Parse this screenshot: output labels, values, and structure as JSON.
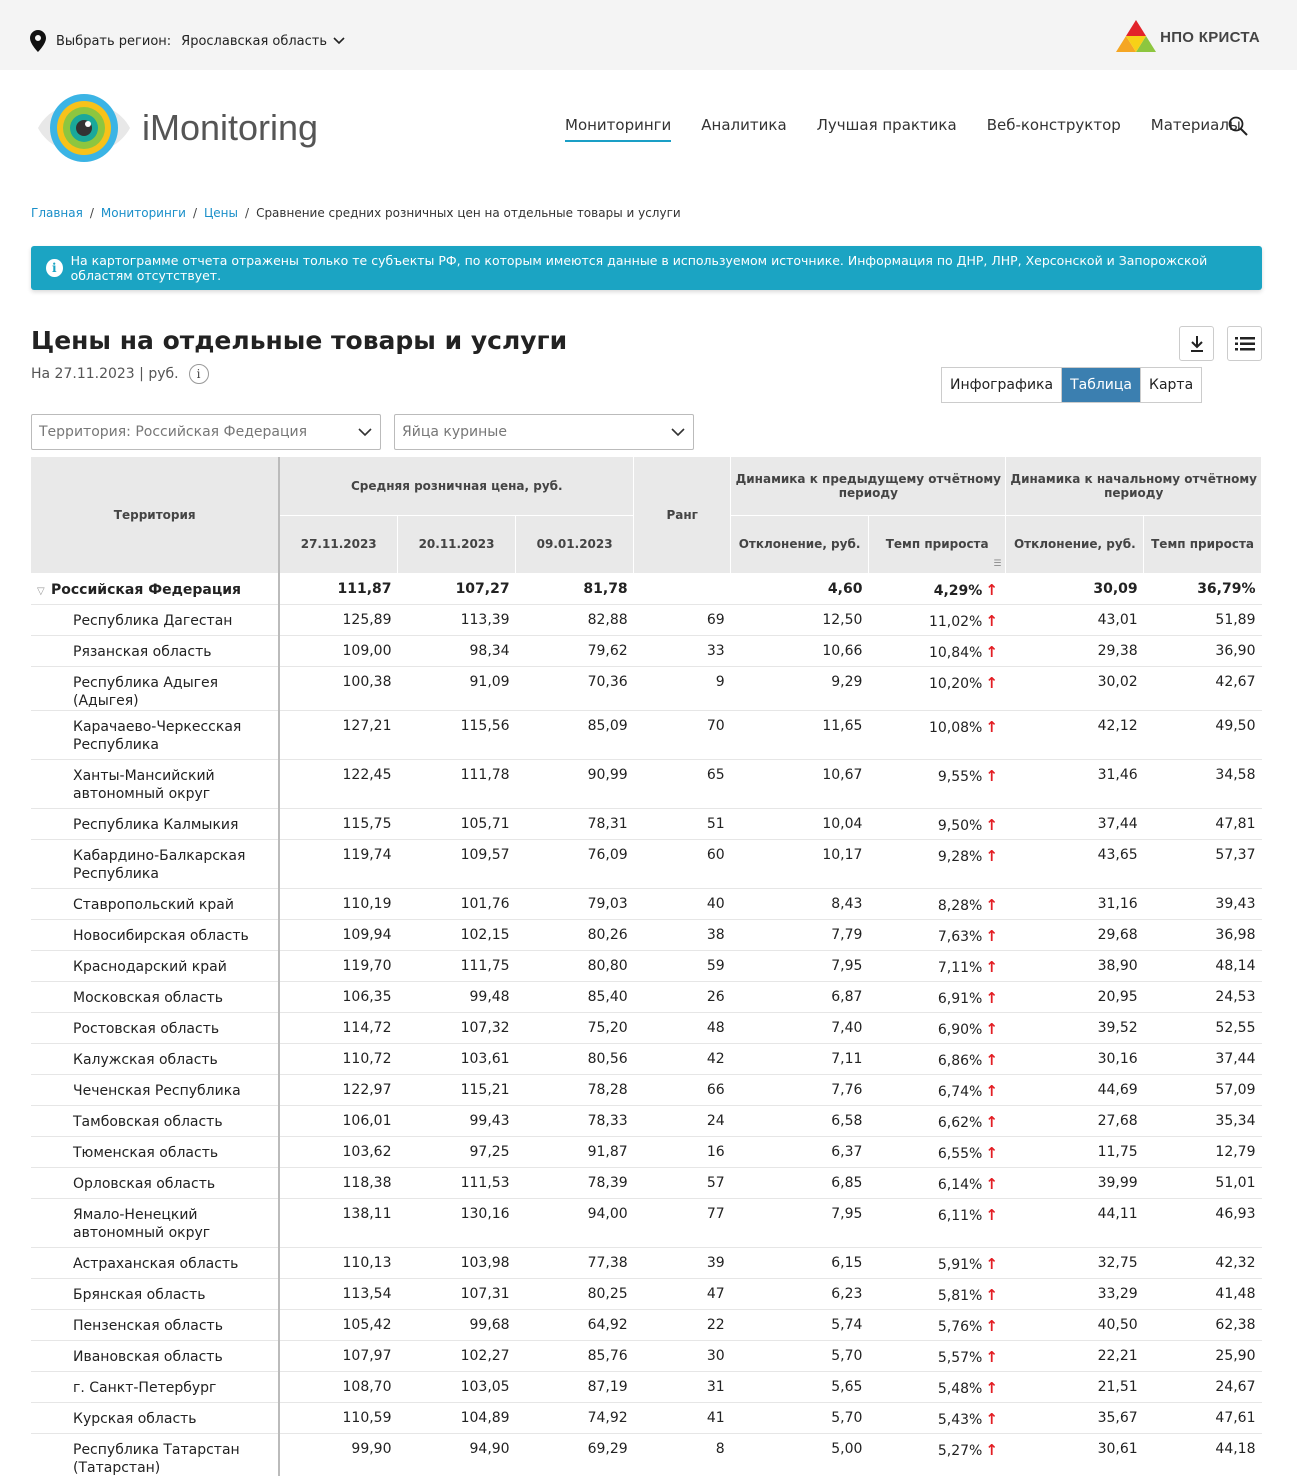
{
  "topbar": {
    "region_label": "Выбрать регион:",
    "region_value": "Ярославская область",
    "brand": "НПО КРИСТА"
  },
  "header": {
    "logo_text": "iMonitoring",
    "nav": [
      "Мониторинги",
      "Аналитика",
      "Лучшая практика",
      "Веб-конструктор",
      "Материалы"
    ]
  },
  "breadcrumbs": [
    "Главная",
    "Мониторинги",
    "Цены",
    "Сравнение средних розничных цен на отдельные товары и услуги"
  ],
  "alert": "На картограмме отчета отражены только те субъекты РФ, по которым имеются данные в используемом источнике. Информация по ДНР, ЛНР, Херсонской и Запорожской областям отсутствует.",
  "page": {
    "title": "Цены на отдельные товары и услуги",
    "subtitle": "На 27.11.2023 | руб.",
    "info_glyph": "i",
    "views": [
      "Инфографика",
      "Таблица",
      "Карта"
    ],
    "selected_view": "Таблица"
  },
  "filters": {
    "territory": "Территория: Российская  Федерация",
    "product": "Яйца куриные"
  },
  "table": {
    "h_territory": "Территория",
    "h_avg_price": "Средняя розничная цена, руб.",
    "h_rank": "Ранг",
    "h_dyn_prev": "Динамика к предыдущему отчётному периоду",
    "h_dyn_start": "Динамика к начальному отчётному периоду",
    "h_dates": [
      "27.11.2023",
      "20.11.2023",
      "09.01.2023"
    ],
    "h_dev": "Отклонение, руб.",
    "h_rate": "Темп прироста",
    "h_dev2": "Отклонение, руб.",
    "h_rate2": "Темп прироста",
    "total": {
      "name": "Российская Федерация",
      "p1": "111,87",
      "p2": "107,27",
      "p3": "81,78",
      "rank": "",
      "dev": "4,60",
      "rate": "4,29%",
      "dev2": "30,09",
      "rate2": "36,79%"
    },
    "rows": [
      {
        "name": "Республика Дагестан",
        "p1": "125,89",
        "p2": "113,39",
        "p3": "82,88",
        "rank": "69",
        "dev": "12,50",
        "rate": "11,02%",
        "dev2": "43,01",
        "rate2": "51,89"
      },
      {
        "name": "Рязанская область",
        "p1": "109,00",
        "p2": "98,34",
        "p3": "79,62",
        "rank": "33",
        "dev": "10,66",
        "rate": "10,84%",
        "dev2": "29,38",
        "rate2": "36,90"
      },
      {
        "name": "Республика Адыгея (Адыгея)",
        "p1": "100,38",
        "p2": "91,09",
        "p3": "70,36",
        "rank": "9",
        "dev": "9,29",
        "rate": "10,20%",
        "dev2": "30,02",
        "rate2": "42,67"
      },
      {
        "name": "Карачаево-Черкесская Республика",
        "p1": "127,21",
        "p2": "115,56",
        "p3": "85,09",
        "rank": "70",
        "dev": "11,65",
        "rate": "10,08%",
        "dev2": "42,12",
        "rate2": "49,50",
        "tall": true
      },
      {
        "name": "Ханты-Мансийский автономный округ",
        "p1": "122,45",
        "p2": "111,78",
        "p3": "90,99",
        "rank": "65",
        "dev": "10,67",
        "rate": "9,55%",
        "dev2": "31,46",
        "rate2": "34,58",
        "tall": true
      },
      {
        "name": "Республика Калмыкия",
        "p1": "115,75",
        "p2": "105,71",
        "p3": "78,31",
        "rank": "51",
        "dev": "10,04",
        "rate": "9,50%",
        "dev2": "37,44",
        "rate2": "47,81"
      },
      {
        "name": "Кабардино-Балкарская Республика",
        "p1": "119,74",
        "p2": "109,57",
        "p3": "76,09",
        "rank": "60",
        "dev": "10,17",
        "rate": "9,28%",
        "dev2": "43,65",
        "rate2": "57,37",
        "tall": true
      },
      {
        "name": "Ставропольский край",
        "p1": "110,19",
        "p2": "101,76",
        "p3": "79,03",
        "rank": "40",
        "dev": "8,43",
        "rate": "8,28%",
        "dev2": "31,16",
        "rate2": "39,43"
      },
      {
        "name": "Новосибирская область",
        "p1": "109,94",
        "p2": "102,15",
        "p3": "80,26",
        "rank": "38",
        "dev": "7,79",
        "rate": "7,63%",
        "dev2": "29,68",
        "rate2": "36,98"
      },
      {
        "name": "Краснодарский край",
        "p1": "119,70",
        "p2": "111,75",
        "p3": "80,80",
        "rank": "59",
        "dev": "7,95",
        "rate": "7,11%",
        "dev2": "38,90",
        "rate2": "48,14"
      },
      {
        "name": "Московская область",
        "p1": "106,35",
        "p2": "99,48",
        "p3": "85,40",
        "rank": "26",
        "dev": "6,87",
        "rate": "6,91%",
        "dev2": "20,95",
        "rate2": "24,53"
      },
      {
        "name": "Ростовская область",
        "p1": "114,72",
        "p2": "107,32",
        "p3": "75,20",
        "rank": "48",
        "dev": "7,40",
        "rate": "6,90%",
        "dev2": "39,52",
        "rate2": "52,55"
      },
      {
        "name": "Калужская область",
        "p1": "110,72",
        "p2": "103,61",
        "p3": "80,56",
        "rank": "42",
        "dev": "7,11",
        "rate": "6,86%",
        "dev2": "30,16",
        "rate2": "37,44"
      },
      {
        "name": "Чеченская Республика",
        "p1": "122,97",
        "p2": "115,21",
        "p3": "78,28",
        "rank": "66",
        "dev": "7,76",
        "rate": "6,74%",
        "dev2": "44,69",
        "rate2": "57,09"
      },
      {
        "name": "Тамбовская область",
        "p1": "106,01",
        "p2": "99,43",
        "p3": "78,33",
        "rank": "24",
        "dev": "6,58",
        "rate": "6,62%",
        "dev2": "27,68",
        "rate2": "35,34"
      },
      {
        "name": "Тюменская область",
        "p1": "103,62",
        "p2": "97,25",
        "p3": "91,87",
        "rank": "16",
        "dev": "6,37",
        "rate": "6,55%",
        "dev2": "11,75",
        "rate2": "12,79"
      },
      {
        "name": "Орловская область",
        "p1": "118,38",
        "p2": "111,53",
        "p3": "78,39",
        "rank": "57",
        "dev": "6,85",
        "rate": "6,14%",
        "dev2": "39,99",
        "rate2": "51,01"
      },
      {
        "name": "Ямало-Ненецкий автономный округ",
        "p1": "138,11",
        "p2": "130,16",
        "p3": "94,00",
        "rank": "77",
        "dev": "7,95",
        "rate": "6,11%",
        "dev2": "44,11",
        "rate2": "46,93",
        "tall": true
      },
      {
        "name": "Астраханская область",
        "p1": "110,13",
        "p2": "103,98",
        "p3": "77,38",
        "rank": "39",
        "dev": "6,15",
        "rate": "5,91%",
        "dev2": "32,75",
        "rate2": "42,32"
      },
      {
        "name": "Брянская область",
        "p1": "113,54",
        "p2": "107,31",
        "p3": "80,25",
        "rank": "47",
        "dev": "6,23",
        "rate": "5,81%",
        "dev2": "33,29",
        "rate2": "41,48"
      },
      {
        "name": "Пензенская область",
        "p1": "105,42",
        "p2": "99,68",
        "p3": "64,92",
        "rank": "22",
        "dev": "5,74",
        "rate": "5,76%",
        "dev2": "40,50",
        "rate2": "62,38"
      },
      {
        "name": "Ивановская область",
        "p1": "107,97",
        "p2": "102,27",
        "p3": "85,76",
        "rank": "30",
        "dev": "5,70",
        "rate": "5,57%",
        "dev2": "22,21",
        "rate2": "25,90"
      },
      {
        "name": "г. Санкт-Петербург",
        "p1": "108,70",
        "p2": "103,05",
        "p3": "87,19",
        "rank": "31",
        "dev": "5,65",
        "rate": "5,48%",
        "dev2": "21,51",
        "rate2": "24,67"
      },
      {
        "name": "Курская область",
        "p1": "110,59",
        "p2": "104,89",
        "p3": "74,92",
        "rank": "41",
        "dev": "5,70",
        "rate": "5,43%",
        "dev2": "35,67",
        "rate2": "47,61"
      },
      {
        "name": "Республика Татарстан (Татарстан)",
        "p1": "99,90",
        "p2": "94,90",
        "p3": "69,29",
        "rank": "8",
        "dev": "5,00",
        "rate": "5,27%",
        "dev2": "30,61",
        "rate2": "44,18",
        "tall": true
      }
    ]
  },
  "colors": {
    "accent": "#1ba4c3",
    "selected_view": "#3b7fb0",
    "arrow_up": "#e31e24",
    "header_bg": "#e9e9e9"
  },
  "icons": {
    "location": "map-pin-icon",
    "search": "search-icon",
    "download": "download-icon",
    "list": "list-icon",
    "arrow_up": "arrow-up-icon"
  }
}
